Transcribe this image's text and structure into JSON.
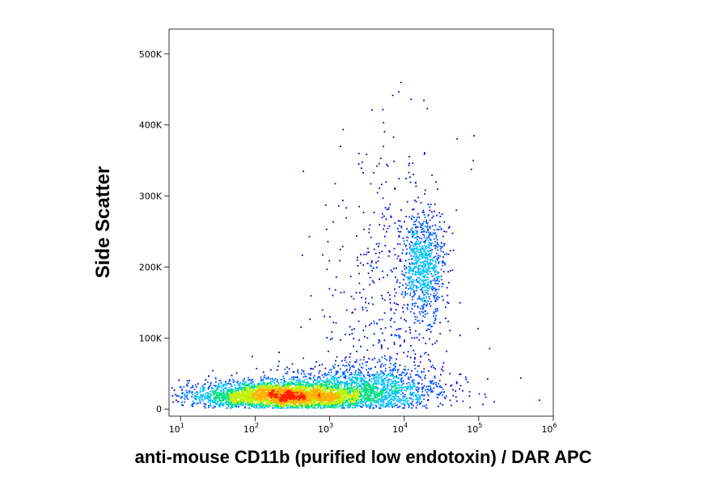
{
  "chart_data": {
    "type": "scatter",
    "plot_style": "flow cytometry density dot plot",
    "xlabel": "anti-mouse CD11b (purified low endotoxin) / DAR APC",
    "ylabel": "Side Scatter",
    "x_scale": "log",
    "x_range": [
      7,
      1000000
    ],
    "y_range": [
      -10000,
      535000
    ],
    "x_ticks": [
      {
        "value": 10,
        "base": "10",
        "exp": "1"
      },
      {
        "value": 100,
        "base": "10",
        "exp": "2"
      },
      {
        "value": 1000,
        "base": "10",
        "exp": "3"
      },
      {
        "value": 10000,
        "base": "10",
        "exp": "4"
      },
      {
        "value": 100000,
        "base": "10",
        "exp": "5"
      },
      {
        "value": 1000000,
        "base": "10",
        "exp": "6"
      }
    ],
    "y_ticks": [
      {
        "value": 0,
        "label": "0"
      },
      {
        "value": 100000,
        "label": "100K"
      },
      {
        "value": 200000,
        "label": "200K"
      },
      {
        "value": 300000,
        "label": "300K"
      },
      {
        "value": 400000,
        "label": "400K"
      },
      {
        "value": 500000,
        "label": "500K"
      }
    ],
    "populations": [
      {
        "center_log10_x": 2.35,
        "center_y": 20000,
        "log10_x_spread": 0.6,
        "y_spread": 10000,
        "weight": 0.58
      },
      {
        "center_log10_x": 3.45,
        "center_y": 30000,
        "log10_x_spread": 0.55,
        "y_spread": 18000,
        "weight": 0.22
      },
      {
        "center_log10_x": 4.25,
        "center_y": 205000,
        "log10_x_spread": 0.14,
        "y_spread": 38000,
        "weight": 0.12
      },
      {
        "center_log10_x": 3.8,
        "center_y": 160000,
        "log10_x_spread": 0.45,
        "y_spread": 110000,
        "weight": 0.08
      }
    ],
    "density_colors": [
      "#0000cc",
      "#0050ff",
      "#00c0ff",
      "#00e080",
      "#c0f000",
      "#ffb000",
      "#ff2000"
    ],
    "grid": false,
    "legend": "none"
  }
}
